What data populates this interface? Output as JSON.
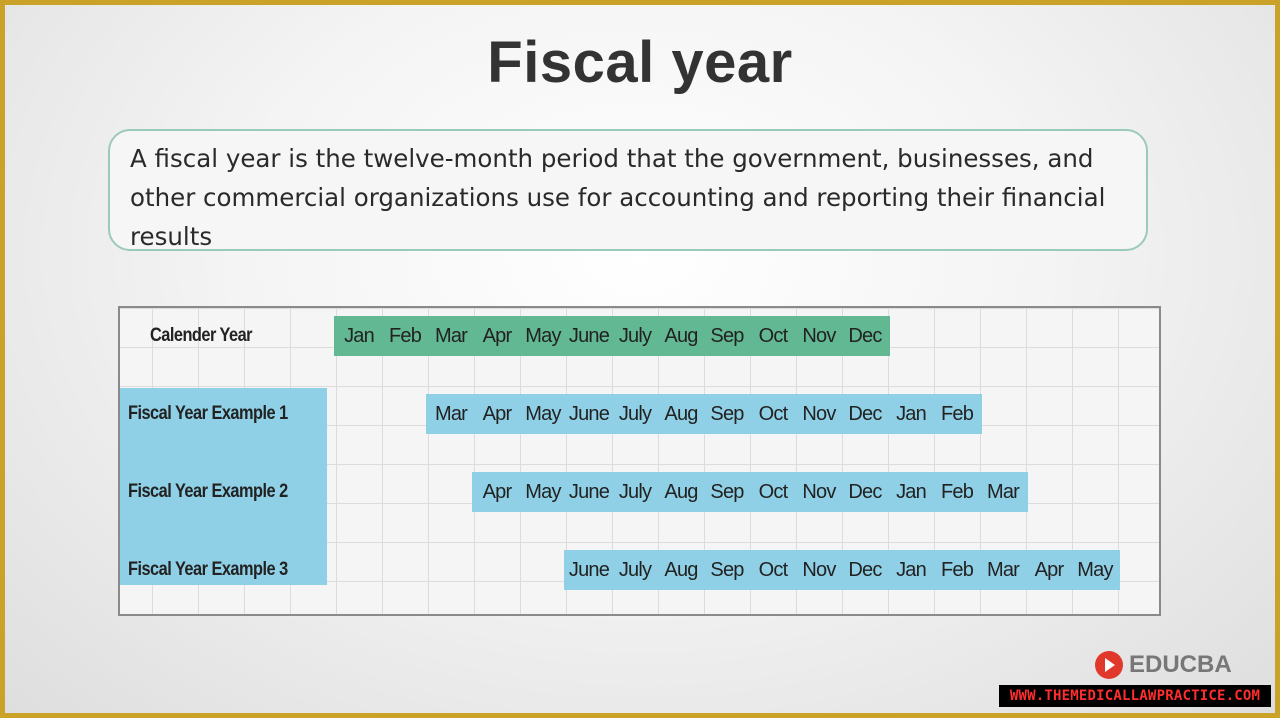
{
  "title": "Fiscal year",
  "definition": "A fiscal year is the twelve-month period that the government, businesses, and other commercial organizations use for accounting and reporting their financial results",
  "colors": {
    "calendar_band": "#62b893",
    "fiscal_band": "#8fd0e6",
    "frame": "#c9a227"
  },
  "table": {
    "rows": [
      {
        "label": "Calender Year",
        "style": "green",
        "start_col": 0,
        "months": [
          "Jan",
          "Feb",
          "Mar",
          "Apr",
          "May",
          "June",
          "July",
          "Aug",
          "Sep",
          "Oct",
          "Nov",
          "Dec"
        ]
      },
      {
        "label": "Fiscal Year Example 1",
        "style": "blue",
        "start_col": 2,
        "months": [
          "Mar",
          "Apr",
          "May",
          "June",
          "July",
          "Aug",
          "Sep",
          "Oct",
          "Nov",
          "Dec",
          "Jan",
          "Feb"
        ]
      },
      {
        "label": "Fiscal Year Example 2",
        "style": "blue",
        "start_col": 3,
        "months": [
          "Apr",
          "May",
          "June",
          "July",
          "Aug",
          "Sep",
          "Oct",
          "Nov",
          "Dec",
          "Jan",
          "Feb",
          "Mar"
        ]
      },
      {
        "label": "Fiscal Year Example 3",
        "style": "blue",
        "start_col": 5,
        "months": [
          "June",
          "July",
          "Aug",
          "Sep",
          "Oct",
          "Nov",
          "Dec",
          "Jan",
          "Feb",
          "Mar",
          "Apr",
          "May"
        ]
      }
    ]
  },
  "logo": {
    "text": "EDUCBA",
    "icon": "play-logo-icon"
  },
  "watermark": "WWW.THEMEDICALLAWPRACTICE.COM"
}
